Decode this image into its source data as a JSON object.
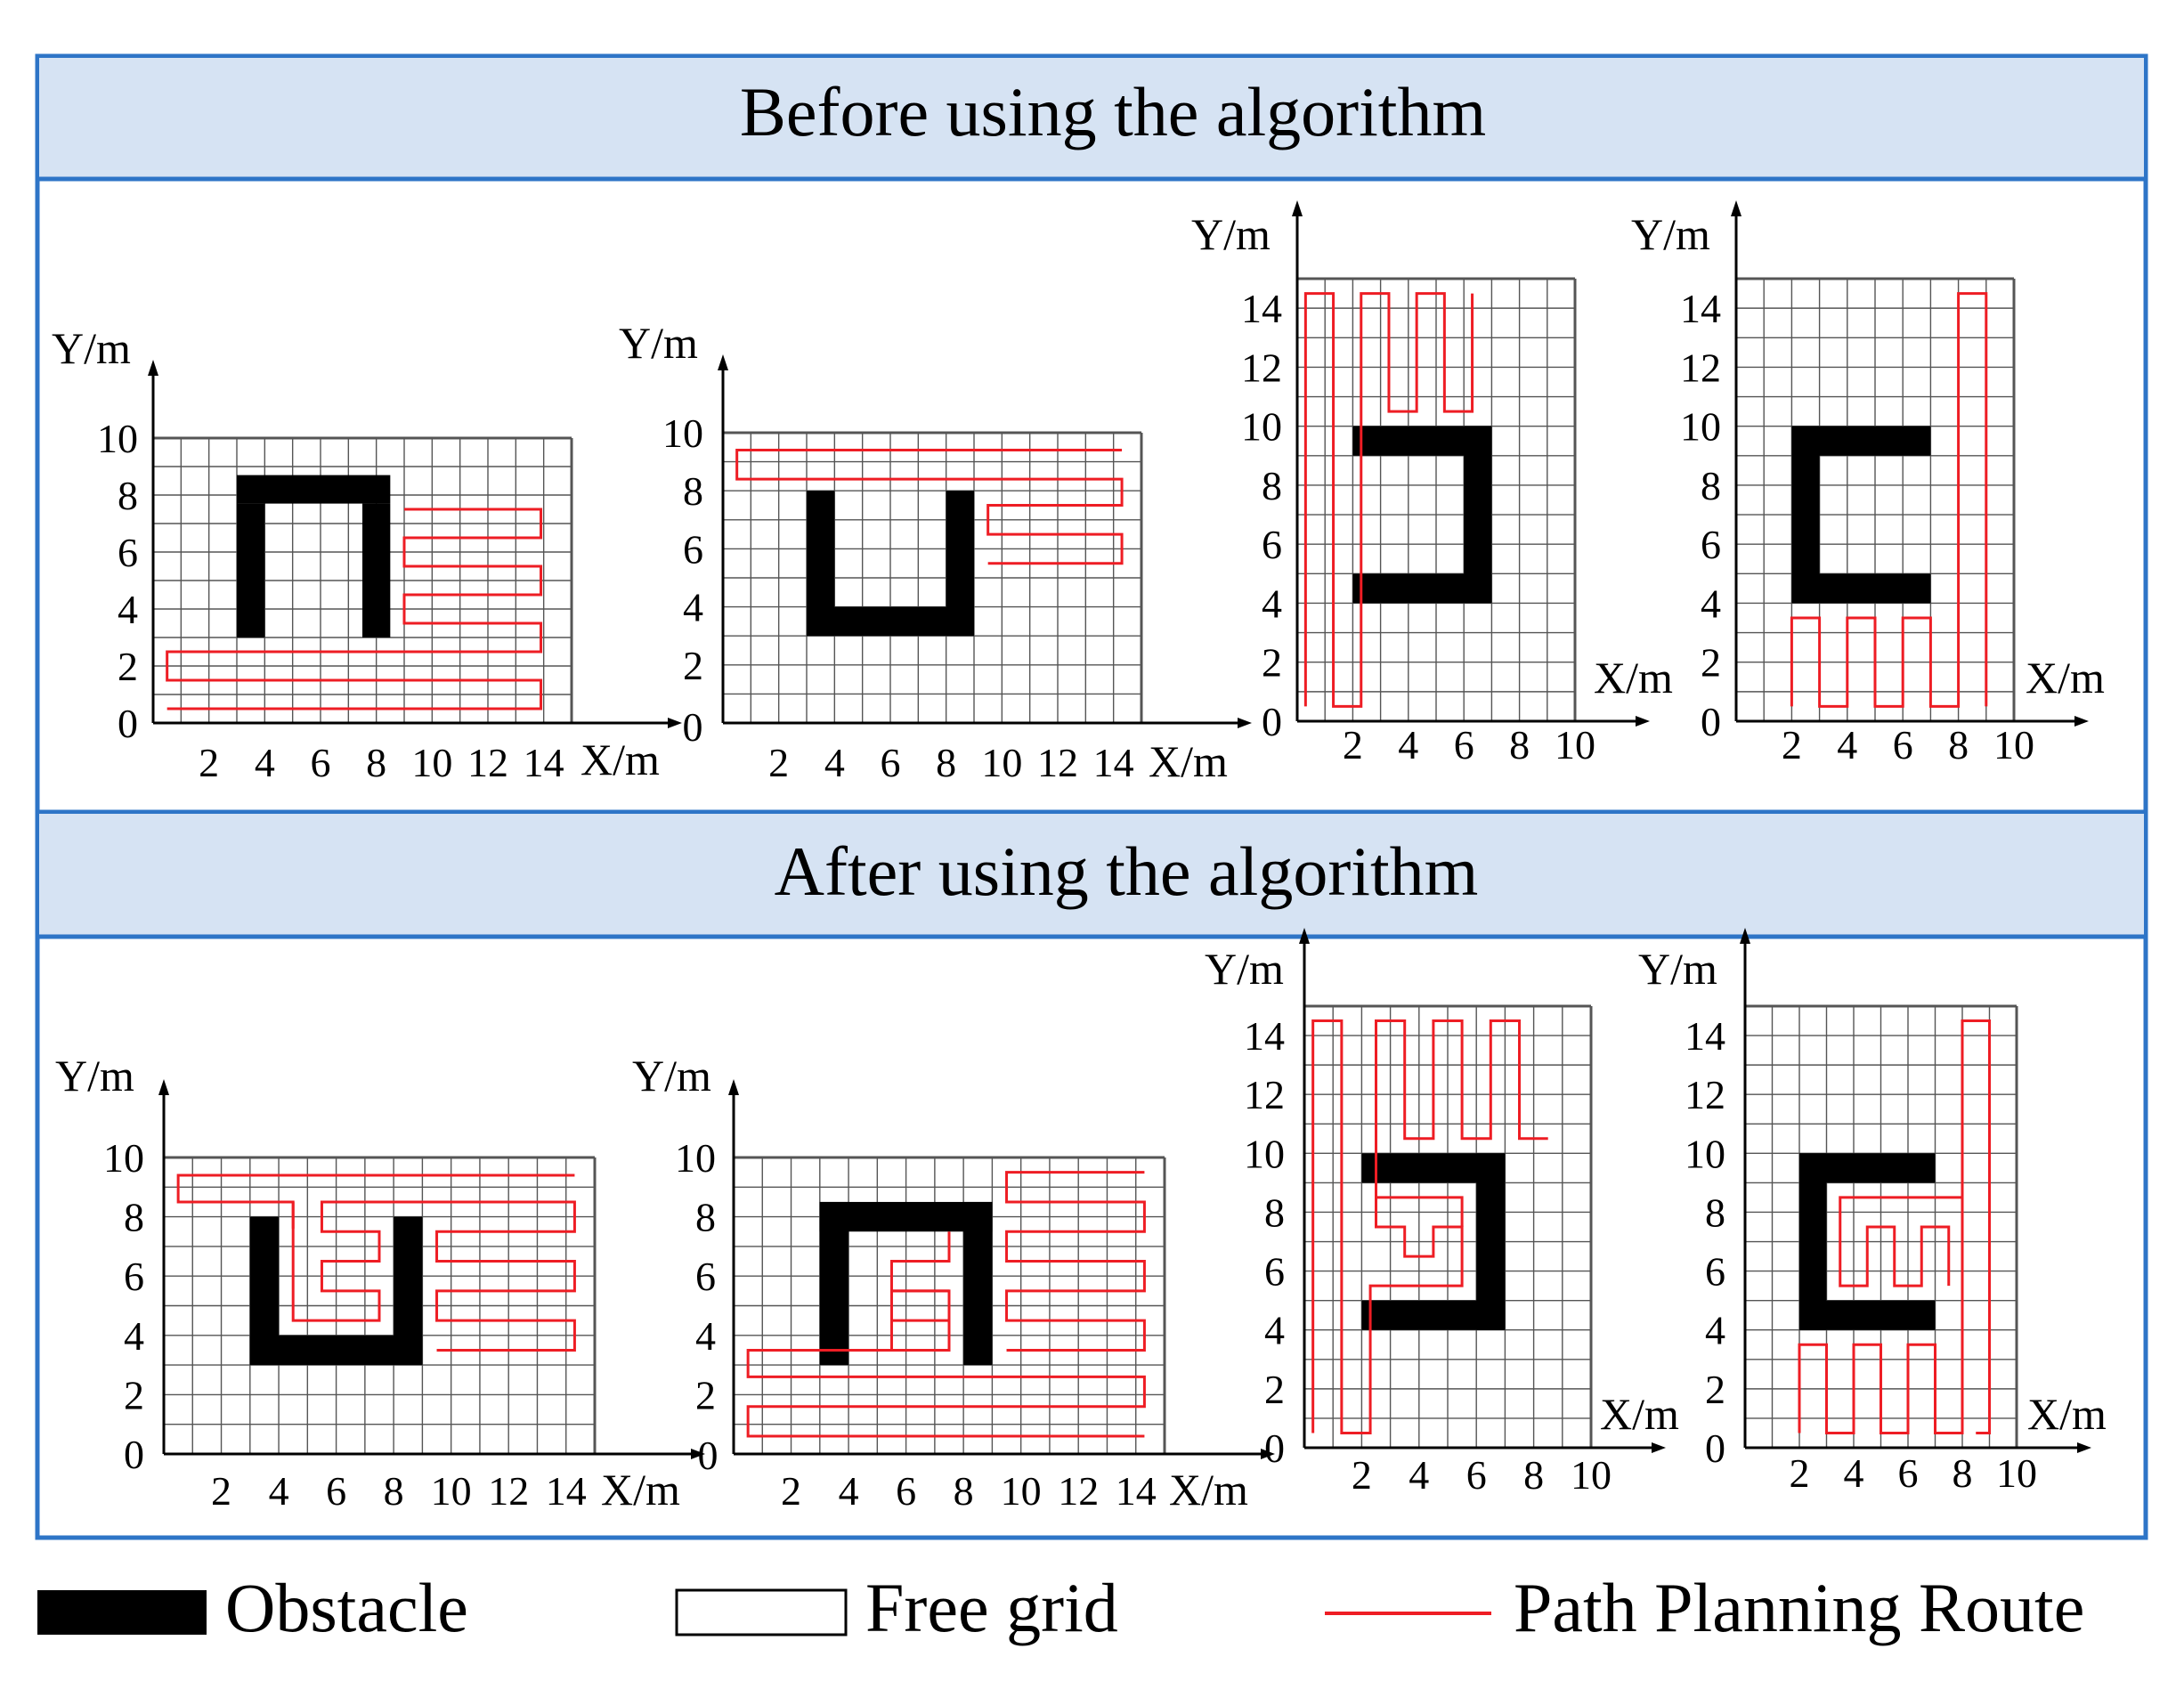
{
  "figure": {
    "sections": [
      {
        "title": "Before using the algorithm",
        "charts": [
          {
            "y_label": "Y/m",
            "x_label": "X/m",
            "x_ticks": [
              "2",
              "4",
              "6",
              "8",
              "10",
              "12",
              "14"
            ],
            "y_ticks": [
              "0",
              "2",
              "4",
              "6",
              "8",
              "10"
            ],
            "grid_cells": [
              15,
              10
            ],
            "obstacle": "n-shape (top bar y 7.7-8.7 from x 3-8.5, legs down to y 3)",
            "route": "horizontal boustrophedon passes below and to the right of the obstacle"
          },
          {
            "y_label": "Y/m",
            "x_label": "X/m",
            "x_ticks": [
              "2",
              "4",
              "6",
              "8",
              "10",
              "12",
              "14"
            ],
            "y_ticks": [
              "2",
              "4",
              "6",
              "8",
              "10"
            ],
            "origin_label": "0",
            "grid_cells": [
              15,
              10
            ],
            "obstacle": "U-shape (legs x 3-4 and 8-9, bottom y 3-4)",
            "route": "horizontal passes above and to the right of the obstacle"
          },
          {
            "y_label": "Y/m",
            "x_label": "X/m",
            "x_ticks": [
              "2",
              "4",
              "6",
              "8",
              "10"
            ],
            "y_ticks": [
              "0",
              "2",
              "4",
              "6",
              "8",
              "10",
              "12",
              "14"
            ],
            "grid_cells": [
              10,
              15
            ],
            "obstacle": "reversed C (open to the left)",
            "route": "vertical passes left of and above the obstacle"
          },
          {
            "y_label": "Y/m",
            "x_label": "X/m",
            "x_ticks": [
              "2",
              "4",
              "6",
              "8",
              "10"
            ],
            "y_ticks": [
              "0",
              "2",
              "4",
              "6",
              "8",
              "10",
              "12",
              "14"
            ],
            "grid_cells": [
              10,
              15
            ],
            "obstacle": "C-shape (open to the right)",
            "route": "vertical passes below and to the right of the obstacle"
          }
        ]
      },
      {
        "title": "After using the algorithm",
        "charts": [
          {
            "y_label": "Y/m",
            "x_label": "X/m",
            "x_ticks": [
              "2",
              "4",
              "6",
              "8",
              "10",
              "12",
              "14"
            ],
            "y_ticks": [
              "0",
              "2",
              "4",
              "6",
              "8",
              "10"
            ],
            "grid_cells": [
              15,
              10
            ],
            "obstacle": "U-shape",
            "route": "passes above, inside and to the right of the obstacle"
          },
          {
            "y_label": "Y/m",
            "x_label": "X/m",
            "x_ticks": [
              "2",
              "4",
              "6",
              "8",
              "10",
              "12",
              "14"
            ],
            "y_ticks": [
              "2",
              "4",
              "6",
              "8",
              "10"
            ],
            "origin_label": "0",
            "grid_cells": [
              15,
              10
            ],
            "obstacle": "n-shape",
            "route": "passes below, inside and to the right of the obstacle"
          },
          {
            "y_label": "Y/m",
            "x_label": "X/m",
            "x_ticks": [
              "2",
              "4",
              "6",
              "8",
              "10"
            ],
            "y_ticks": [
              "0",
              "2",
              "4",
              "6",
              "8",
              "10",
              "12",
              "14"
            ],
            "grid_cells": [
              10,
              15
            ],
            "obstacle": "reversed C",
            "route": "passes left of, above and inside the obstacle"
          },
          {
            "y_label": "Y/m",
            "x_label": "X/m",
            "x_ticks": [
              "2",
              "4",
              "6",
              "8",
              "10"
            ],
            "y_ticks": [
              "0",
              "2",
              "4",
              "6",
              "8",
              "10",
              "12",
              "14"
            ],
            "grid_cells": [
              10,
              15
            ],
            "obstacle": "C-shape",
            "route": "passes below, right of and inside the obstacle"
          }
        ]
      }
    ],
    "legend": [
      {
        "label": "Obstacle"
      },
      {
        "label": "Free grid"
      },
      {
        "label": "Path Planning Route"
      }
    ],
    "colors": {
      "frame": "#2e75c7",
      "header_fill": "#d6e3f3",
      "route": "#ee1d24",
      "obstacle": "#000000",
      "grid": "#555555"
    }
  }
}
